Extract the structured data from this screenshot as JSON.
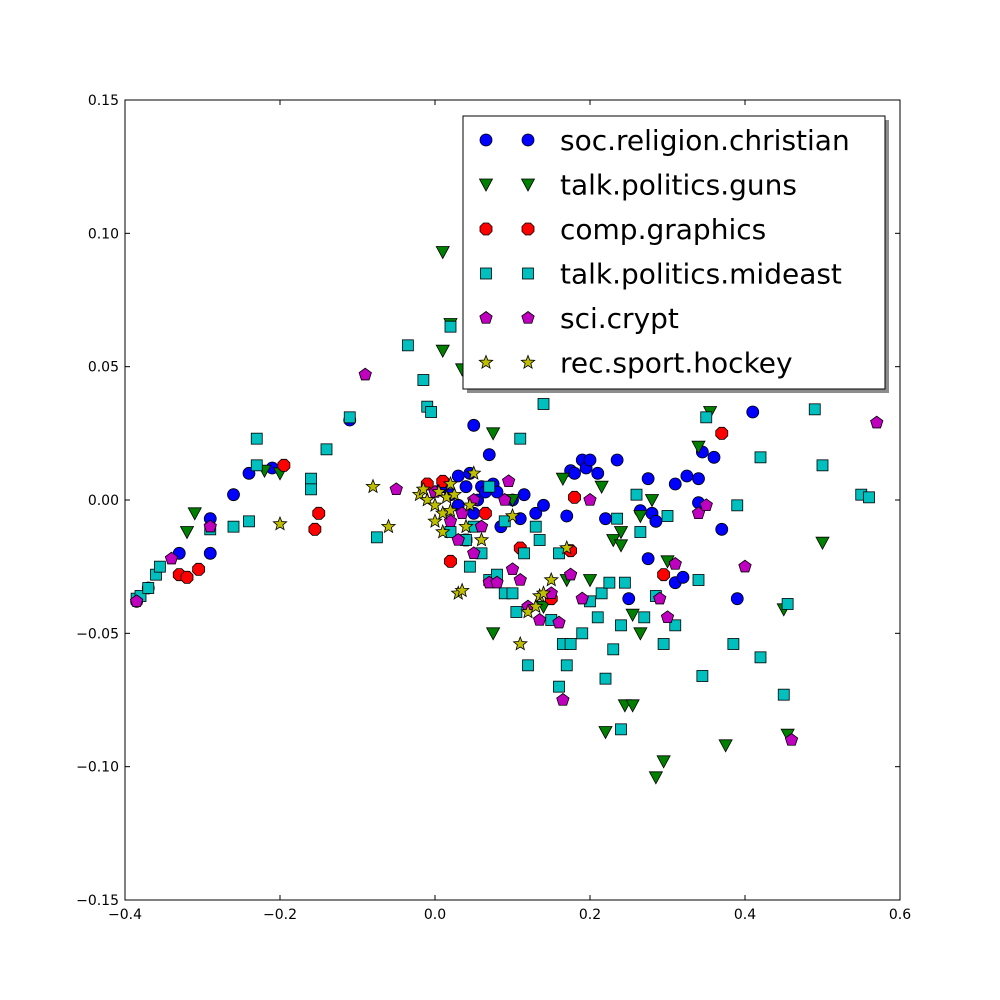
{
  "chart_data": {
    "type": "scatter",
    "title": "",
    "xlabel": "",
    "ylabel": "",
    "xlim": [
      -0.4,
      0.6
    ],
    "ylim": [
      -0.15,
      0.15
    ],
    "xticks": [
      "−0.4",
      "−0.2",
      "0.0",
      "0.2",
      "0.4",
      "0.6"
    ],
    "xtick_values": [
      -0.4,
      -0.2,
      0.0,
      0.2,
      0.4,
      0.6
    ],
    "yticks": [
      "0.15",
      "0.10",
      "0.05",
      "0.00",
      "−0.05",
      "−0.10",
      "−0.15"
    ],
    "ytick_values": [
      0.15,
      0.1,
      0.05,
      0.0,
      -0.05,
      -0.1,
      -0.15
    ],
    "grid": false,
    "legend_position": "top-right",
    "series": [
      {
        "name": "soc.religion.christian",
        "marker": "circle",
        "color": "#0000ff",
        "points": [
          [
            -0.385,
            -0.038
          ],
          [
            -0.37,
            -0.033
          ],
          [
            -0.33,
            -0.02
          ],
          [
            -0.29,
            -0.02
          ],
          [
            -0.29,
            -0.007
          ],
          [
            -0.26,
            0.002
          ],
          [
            -0.24,
            0.01
          ],
          [
            -0.21,
            0.012
          ],
          [
            -0.11,
            0.03
          ],
          [
            0.01,
            0.005
          ],
          [
            0.02,
            0.002
          ],
          [
            0.03,
            0.009
          ],
          [
            0.04,
            0.005
          ],
          [
            0.045,
            0.01
          ],
          [
            0.05,
            0.028
          ],
          [
            0.055,
            0.0
          ],
          [
            0.06,
            0.005
          ],
          [
            0.065,
            0.003
          ],
          [
            0.07,
            0.017
          ],
          [
            0.075,
            0.006
          ],
          [
            0.08,
            0.003
          ],
          [
            0.085,
            -0.01
          ],
          [
            0.1,
            0.0
          ],
          [
            0.11,
            -0.007
          ],
          [
            0.115,
            0.002
          ],
          [
            0.13,
            -0.005
          ],
          [
            0.14,
            -0.002
          ],
          [
            0.17,
            -0.006
          ],
          [
            0.175,
            0.011
          ],
          [
            0.18,
            0.01
          ],
          [
            0.19,
            0.015
          ],
          [
            0.195,
            0.012
          ],
          [
            0.2,
            0.015
          ],
          [
            0.21,
            0.01
          ],
          [
            0.22,
            -0.007
          ],
          [
            0.235,
            0.015
          ],
          [
            0.25,
            -0.037
          ],
          [
            0.265,
            -0.004
          ],
          [
            0.275,
            0.008
          ],
          [
            0.275,
            -0.022
          ],
          [
            0.28,
            -0.005
          ],
          [
            0.285,
            -0.008
          ],
          [
            0.31,
            0.006
          ],
          [
            0.31,
            -0.031
          ],
          [
            0.32,
            -0.029
          ],
          [
            0.325,
            0.009
          ],
          [
            0.34,
            0.008
          ],
          [
            0.345,
            0.018
          ],
          [
            0.36,
            0.016
          ],
          [
            0.37,
            -0.011
          ],
          [
            0.39,
            -0.037
          ],
          [
            0.41,
            0.033
          ],
          [
            0.34,
            -0.001
          ],
          [
            0.03,
            -0.002
          ],
          [
            0.05,
            -0.005
          ]
        ]
      },
      {
        "name": "talk.politics.guns",
        "marker": "triangle-down",
        "color": "#008000",
        "points": [
          [
            -0.31,
            -0.005
          ],
          [
            -0.32,
            -0.012
          ],
          [
            -0.22,
            0.011
          ],
          [
            -0.2,
            0.01
          ],
          [
            0.01,
            0.093
          ],
          [
            0.01,
            0.056
          ],
          [
            0.02,
            0.066
          ],
          [
            0.035,
            0.049
          ],
          [
            0.075,
            0.025
          ],
          [
            0.075,
            -0.05
          ],
          [
            0.1,
            0.0
          ],
          [
            0.12,
            0.048
          ],
          [
            0.165,
            0.008
          ],
          [
            0.17,
            -0.03
          ],
          [
            0.2,
            -0.03
          ],
          [
            0.215,
            0.005
          ],
          [
            0.22,
            -0.087
          ],
          [
            0.23,
            -0.015
          ],
          [
            0.24,
            -0.017
          ],
          [
            0.245,
            -0.077
          ],
          [
            0.255,
            -0.077
          ],
          [
            0.255,
            -0.043
          ],
          [
            0.265,
            -0.05
          ],
          [
            0.265,
            -0.006
          ],
          [
            0.28,
            0.0
          ],
          [
            0.285,
            -0.104
          ],
          [
            0.295,
            -0.098
          ],
          [
            0.3,
            -0.023
          ],
          [
            0.34,
            0.02
          ],
          [
            0.355,
            0.033
          ],
          [
            0.375,
            -0.092
          ],
          [
            0.41,
            0.048
          ],
          [
            0.45,
            -0.041
          ],
          [
            0.455,
            -0.088
          ],
          [
            0.5,
            -0.016
          ],
          [
            0.24,
            -0.012
          ],
          [
            0.14,
            -0.04
          ]
        ]
      },
      {
        "name": "comp.graphics",
        "marker": "octagon",
        "color": "#ff0000",
        "points": [
          [
            -0.33,
            -0.028
          ],
          [
            -0.32,
            -0.029
          ],
          [
            -0.305,
            -0.026
          ],
          [
            -0.195,
            0.013
          ],
          [
            -0.15,
            -0.005
          ],
          [
            -0.155,
            -0.011
          ],
          [
            -0.01,
            0.006
          ],
          [
            0.01,
            0.007
          ],
          [
            0.02,
            -0.023
          ],
          [
            0.04,
            -0.015
          ],
          [
            0.065,
            -0.005
          ],
          [
            0.11,
            -0.018
          ],
          [
            0.15,
            -0.037
          ],
          [
            0.18,
            0.001
          ],
          [
            0.175,
            -0.019
          ],
          [
            0.295,
            -0.028
          ],
          [
            0.37,
            0.025
          ]
        ]
      },
      {
        "name": "talk.politics.mideast",
        "marker": "square",
        "color": "#00bfbf",
        "points": [
          [
            -0.385,
            -0.037
          ],
          [
            -0.38,
            -0.036
          ],
          [
            -0.37,
            -0.033
          ],
          [
            -0.36,
            -0.028
          ],
          [
            -0.355,
            -0.025
          ],
          [
            -0.29,
            -0.011
          ],
          [
            -0.26,
            -0.01
          ],
          [
            -0.24,
            -0.008
          ],
          [
            -0.23,
            0.023
          ],
          [
            -0.23,
            0.013
          ],
          [
            -0.16,
            0.008
          ],
          [
            -0.16,
            0.004
          ],
          [
            -0.14,
            0.019
          ],
          [
            -0.11,
            0.031
          ],
          [
            -0.075,
            -0.014
          ],
          [
            -0.035,
            0.058
          ],
          [
            -0.015,
            0.045
          ],
          [
            -0.01,
            0.035
          ],
          [
            -0.005,
            0.033
          ],
          [
            0.02,
            0.065
          ],
          [
            0.04,
            -0.015
          ],
          [
            0.045,
            -0.025
          ],
          [
            0.05,
            -0.01
          ],
          [
            0.06,
            -0.02
          ],
          [
            0.07,
            -0.03
          ],
          [
            0.08,
            -0.028
          ],
          [
            0.09,
            -0.035
          ],
          [
            0.1,
            -0.035
          ],
          [
            0.105,
            -0.042
          ],
          [
            0.11,
            0.023
          ],
          [
            0.115,
            -0.02
          ],
          [
            0.12,
            -0.062
          ],
          [
            0.13,
            -0.01
          ],
          [
            0.135,
            -0.015
          ],
          [
            0.14,
            0.036
          ],
          [
            0.15,
            -0.045
          ],
          [
            0.16,
            -0.07
          ],
          [
            0.165,
            -0.054
          ],
          [
            0.17,
            -0.062
          ],
          [
            0.175,
            -0.054
          ],
          [
            0.19,
            -0.05
          ],
          [
            0.2,
            -0.038
          ],
          [
            0.21,
            -0.044
          ],
          [
            0.215,
            -0.035
          ],
          [
            0.22,
            -0.067
          ],
          [
            0.225,
            -0.031
          ],
          [
            0.23,
            -0.056
          ],
          [
            0.235,
            -0.007
          ],
          [
            0.24,
            -0.086
          ],
          [
            0.24,
            -0.047
          ],
          [
            0.245,
            -0.031
          ],
          [
            0.26,
            0.002
          ],
          [
            0.265,
            -0.012
          ],
          [
            0.27,
            -0.044
          ],
          [
            0.285,
            -0.036
          ],
          [
            0.295,
            -0.054
          ],
          [
            0.3,
            -0.006
          ],
          [
            0.31,
            -0.047
          ],
          [
            0.34,
            -0.03
          ],
          [
            0.345,
            -0.066
          ],
          [
            0.35,
            0.031
          ],
          [
            0.385,
            -0.054
          ],
          [
            0.39,
            -0.002
          ],
          [
            0.42,
            0.016
          ],
          [
            0.42,
            -0.059
          ],
          [
            0.45,
            -0.073
          ],
          [
            0.455,
            -0.039
          ],
          [
            0.49,
            0.034
          ],
          [
            0.5,
            0.013
          ],
          [
            0.55,
            0.002
          ],
          [
            0.56,
            0.001
          ],
          [
            0.07,
            0.005
          ],
          [
            0.09,
            -0.008
          ],
          [
            0.02,
            -0.012
          ],
          [
            0.16,
            -0.02
          ]
        ]
      },
      {
        "name": "sci.crypt",
        "marker": "pentagon",
        "color": "#bf00bf",
        "points": [
          [
            -0.385,
            -0.038
          ],
          [
            -0.34,
            -0.022
          ],
          [
            -0.29,
            -0.01
          ],
          [
            -0.09,
            0.047
          ],
          [
            -0.05,
            0.004
          ],
          [
            0.0,
            0.003
          ],
          [
            0.02,
            -0.008
          ],
          [
            0.03,
            -0.015
          ],
          [
            0.05,
            -0.02
          ],
          [
            0.06,
            -0.01
          ],
          [
            0.07,
            -0.031
          ],
          [
            0.08,
            -0.031
          ],
          [
            0.09,
            0.0
          ],
          [
            0.095,
            0.007
          ],
          [
            0.1,
            -0.026
          ],
          [
            0.11,
            -0.03
          ],
          [
            0.12,
            -0.04
          ],
          [
            0.135,
            -0.045
          ],
          [
            0.15,
            -0.035
          ],
          [
            0.16,
            -0.046
          ],
          [
            0.165,
            -0.075
          ],
          [
            0.175,
            -0.028
          ],
          [
            0.19,
            -0.037
          ],
          [
            0.2,
            0.0
          ],
          [
            0.29,
            -0.037
          ],
          [
            0.3,
            -0.044
          ],
          [
            0.31,
            -0.024
          ],
          [
            0.34,
            -0.005
          ],
          [
            0.35,
            -0.002
          ],
          [
            0.4,
            -0.025
          ],
          [
            0.46,
            -0.09
          ],
          [
            0.57,
            0.029
          ],
          [
            0.05,
            0.0
          ],
          [
            0.035,
            -0.005
          ]
        ]
      },
      {
        "name": "rec.sport.hockey",
        "marker": "star",
        "color": "#bfbf00",
        "points": [
          [
            -0.2,
            -0.009
          ],
          [
            -0.08,
            0.005
          ],
          [
            -0.06,
            -0.01
          ],
          [
            -0.02,
            0.002
          ],
          [
            -0.01,
            0.0
          ],
          [
            0.0,
            -0.002
          ],
          [
            0.005,
            0.003
          ],
          [
            0.01,
            -0.005
          ],
          [
            0.015,
            0.001
          ],
          [
            0.02,
            -0.004
          ],
          [
            0.025,
            0.002
          ],
          [
            0.03,
            -0.035
          ],
          [
            0.035,
            -0.034
          ],
          [
            0.04,
            -0.01
          ],
          [
            0.05,
            0.01
          ],
          [
            0.06,
            -0.015
          ],
          [
            0.1,
            -0.006
          ],
          [
            0.12,
            -0.042
          ],
          [
            0.13,
            -0.04
          ],
          [
            0.135,
            -0.036
          ],
          [
            0.14,
            -0.035
          ],
          [
            0.15,
            -0.03
          ],
          [
            0.11,
            -0.054
          ],
          [
            0.17,
            -0.018
          ],
          [
            -0.015,
            0.004
          ],
          [
            0.0,
            -0.008
          ],
          [
            0.01,
            -0.012
          ],
          [
            0.02,
            0.006
          ],
          [
            0.045,
            -0.002
          ]
        ]
      }
    ]
  }
}
